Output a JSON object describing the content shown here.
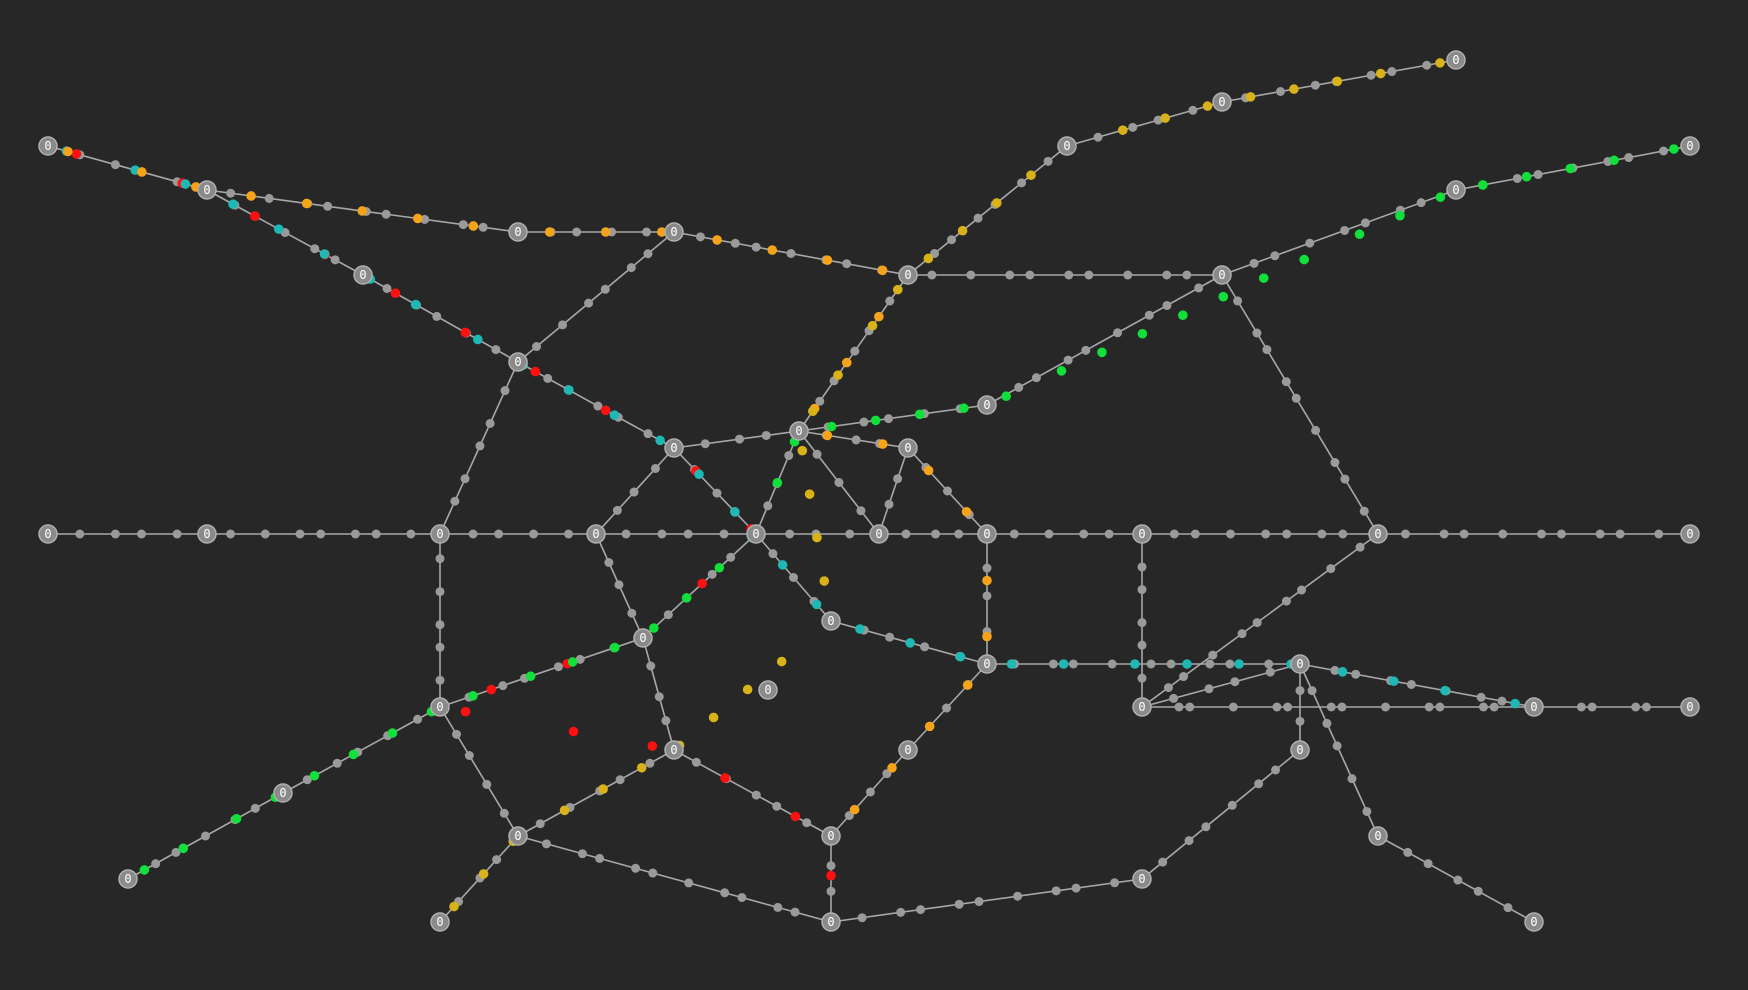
{
  "colors": {
    "background": "#272727",
    "track": "#a8a8a8",
    "station": "#8a8a8a",
    "station_outline": "#b0b0b0",
    "waypoint": "#9a9a9a",
    "train_red": "#ff1010",
    "train_cyan": "#1fb8b4",
    "train_orange": "#f5a31a",
    "train_yellow": "#d9b21a",
    "train_green": "#12e03a"
  },
  "station_label": "0",
  "station_count": 45,
  "lines": [
    {
      "name": "red-line",
      "color": "train_red",
      "train_count": 20
    },
    {
      "name": "cyan-line",
      "color": "train_cyan",
      "train_count": 30
    },
    {
      "name": "orange-line",
      "color": "train_orange",
      "train_count": 28
    },
    {
      "name": "yellow-line",
      "color": "train_yellow",
      "train_count": 32
    },
    {
      "name": "green-line",
      "color": "train_green",
      "train_count": 38
    }
  ]
}
